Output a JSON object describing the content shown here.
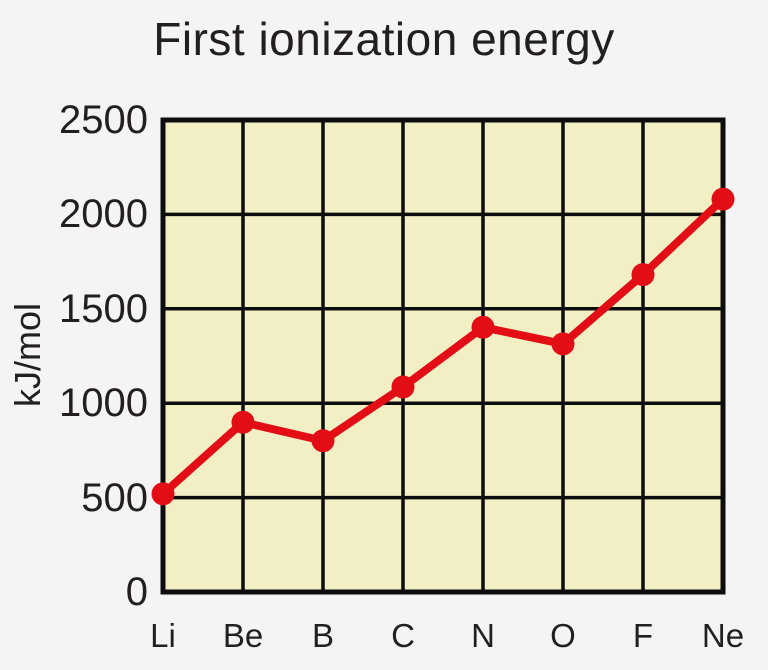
{
  "title": "First ionization energy",
  "chart_data": {
    "type": "line",
    "title": "First ionization energy",
    "xlabel": "",
    "ylabel": "kJ/mol",
    "categories": [
      "Li",
      "Be",
      "B",
      "C",
      "N",
      "O",
      "F",
      "Ne"
    ],
    "values": [
      520,
      899,
      801,
      1086,
      1402,
      1314,
      1681,
      2081
    ],
    "ylim": [
      0,
      2500
    ],
    "yticks": [
      0,
      500,
      1000,
      1500,
      2000,
      2500
    ],
    "grid": true,
    "legend": false,
    "marker": "circle",
    "colors": {
      "line": "#e30d16",
      "marker": "#e30d16",
      "plot_background": "#f3efc5",
      "page_background": "#f5f4f5",
      "grid": "#0d0d0d",
      "text": "#231f20"
    }
  }
}
